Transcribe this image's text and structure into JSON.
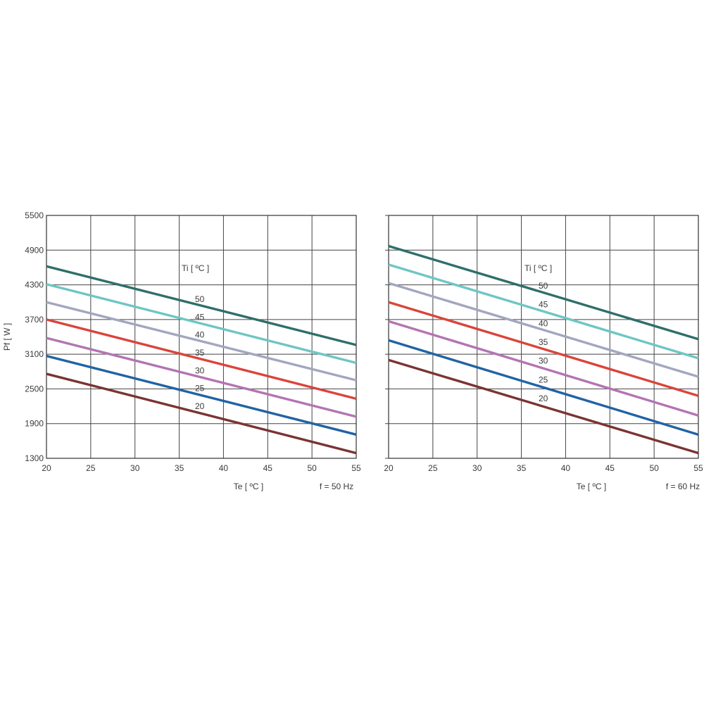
{
  "chart_data": [
    {
      "type": "line",
      "ylabel": "Pf  [ W ]",
      "xlabel": "Te  [ ºC ]",
      "note": "f = 50 Hz",
      "legend_title": "Ti  [ ºC ]",
      "xlim": [
        20,
        55
      ],
      "ylim": [
        1300,
        5500
      ],
      "x_ticks": [
        20,
        25,
        30,
        35,
        40,
        45,
        50,
        55
      ],
      "y_ticks": [
        1300,
        1900,
        2500,
        3100,
        3700,
        4300,
        4900,
        5500
      ],
      "grid": true,
      "x": [
        20,
        55
      ],
      "series": [
        {
          "name": "50",
          "values": [
            4620,
            3260
          ],
          "color": "#2f6f6a"
        },
        {
          "name": "45",
          "values": [
            4310,
            2950
          ],
          "color": "#6ec6c4"
        },
        {
          "name": "40",
          "values": [
            4000,
            2650
          ],
          "color": "#a3a6bf"
        },
        {
          "name": "35",
          "values": [
            3700,
            2330
          ],
          "color": "#d9453a"
        },
        {
          "name": "30",
          "values": [
            3380,
            2020
          ],
          "color": "#b374b3"
        },
        {
          "name": "25",
          "values": [
            3070,
            1710
          ],
          "color": "#2063a5"
        },
        {
          "name": "20",
          "values": [
            2760,
            1390
          ],
          "color": "#7a3433"
        }
      ]
    },
    {
      "type": "line",
      "xlabel": "Te  [ ºC ]",
      "note": "f = 60 Hz",
      "legend_title": "Ti  [ ºC ]",
      "xlim": [
        20,
        55
      ],
      "ylim": [
        1300,
        5500
      ],
      "x_ticks": [
        20,
        25,
        30,
        35,
        40,
        45,
        50,
        55
      ],
      "y_ticks": [
        1300,
        1900,
        2500,
        3100,
        3700,
        4300,
        4900,
        5500
      ],
      "grid": true,
      "x": [
        20,
        55
      ],
      "series": [
        {
          "name": "50",
          "values": [
            4970,
            3360
          ],
          "color": "#2f6f6a"
        },
        {
          "name": "45",
          "values": [
            4650,
            3030
          ],
          "color": "#6ec6c4"
        },
        {
          "name": "40",
          "values": [
            4330,
            2710
          ],
          "color": "#a3a6bf"
        },
        {
          "name": "35",
          "values": [
            4000,
            2380
          ],
          "color": "#d9453a"
        },
        {
          "name": "30",
          "values": [
            3670,
            2040
          ],
          "color": "#b374b3"
        },
        {
          "name": "25",
          "values": [
            3340,
            1710
          ],
          "color": "#2063a5"
        },
        {
          "name": "20",
          "values": [
            3000,
            1390
          ],
          "color": "#7a3433"
        }
      ]
    }
  ]
}
